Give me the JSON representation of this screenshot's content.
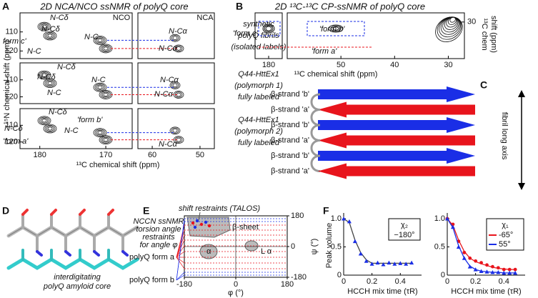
{
  "panel_labels": [
    "A",
    "B",
    "C",
    "D",
    "E",
    "F"
  ],
  "panel_a": {
    "title": "2D NCA/NCO ssNMR of polyQ core",
    "y_label": "¹⁵N chemical shift (ppm)",
    "x_label": "¹³C chemical shift (ppm)",
    "left_xlim": [
      183,
      166
    ],
    "right_xlim": [
      63,
      47
    ],
    "ylim": [
      100,
      124
    ],
    "left_xticks": [
      180,
      170
    ],
    "right_xticks": [
      60,
      50
    ],
    "yticks": [
      110,
      120
    ],
    "region_labels": [
      "NCO",
      "NCA"
    ],
    "rows": [
      {
        "lines": [
          "synthetic",
          "polyQ fibrils",
          "(isolated labels)"
        ]
      },
      {
        "lines": [
          "Q44-HttEx1",
          "(polymorph 1)",
          "fully labeled"
        ]
      },
      {
        "lines": [
          "Q44-HttEx1",
          "(polymorph 2)",
          "fully labeled"
        ]
      }
    ],
    "annotations": [
      {
        "text": "N-Cδ",
        "color": "#1a2ee6"
      },
      {
        "text": "N-Cδ",
        "color": "#e8141c"
      },
      {
        "text": "form c'",
        "color": "#2e7d32"
      },
      {
        "text": "N-C",
        "color": "#1a2ee6"
      },
      {
        "text": "N-C",
        "color": "#e8141c"
      },
      {
        "text": "N-Cα",
        "color": "#1a2ee6"
      },
      {
        "text": "N-Cα",
        "color": "#e8141c"
      },
      {
        "text": "N-Cδ",
        "color": "#1a2ee6"
      },
      {
        "text": "N-Cδ",
        "color": "#e8141c"
      },
      {
        "text": "N-C",
        "color": "#1a2ee6"
      },
      {
        "text": "N-C",
        "color": "#e8141c"
      },
      {
        "text": "N-Cα",
        "color": "#1a2ee6"
      },
      {
        "text": "N-Cα",
        "color": "#e8141c"
      },
      {
        "text": "N-Cδ",
        "color": "#1a2ee6"
      },
      {
        "text": "'form b'",
        "color": "#1a2ee6"
      },
      {
        "text": "N-Cδ",
        "color": "#e8141c"
      },
      {
        "text": "N-C",
        "color": "#1a2ee6"
      },
      {
        "text": "'form a'",
        "color": "#e8141c"
      },
      {
        "text": "N-Cα",
        "color": "#e8141c"
      }
    ]
  },
  "panel_b": {
    "title": "2D ¹³C-¹³C CP-ssNMR of polyQ core",
    "left_xlim": [
      186,
      174
    ],
    "right_xlim": [
      60,
      27
    ],
    "ylim": [
      25,
      50
    ],
    "left_xticks": [
      180
    ],
    "right_xticks": [
      50,
      40,
      30
    ],
    "yticks": [
      30
    ],
    "x_label": "¹³C chemical shift (ppm)",
    "y_label_lines": [
      "¹³C chem",
      "shift (ppm)"
    ],
    "annotations": [
      {
        "text": "'form c'",
        "color": "#333333"
      },
      {
        "text": "'form b'",
        "color": "#1a2ee6"
      },
      {
        "text": "'form a'",
        "color": "#e8141c"
      }
    ]
  },
  "panel_c": {
    "strands": [
      {
        "label": "β-strand 'b'",
        "color": "#1a2ee6"
      },
      {
        "label": "β-strand 'a'",
        "color": "#e8141c"
      },
      {
        "label": "β-strand 'b'",
        "color": "#1a2ee6"
      },
      {
        "label": "β-strand 'a'",
        "color": "#e8141c"
      },
      {
        "label": "β-strand 'b'",
        "color": "#1a2ee6"
      },
      {
        "label": "β-strand 'a'",
        "color": "#e8141c"
      }
    ],
    "axis_label": "fibril long axis"
  },
  "panel_d": {
    "caption_lines": [
      "interdigitating",
      "polyQ amyloid core"
    ]
  },
  "panel_e": {
    "top_label": "shift restraints (TALOS)",
    "left_lines": [
      "NCCN ssNMR",
      "torsion angle",
      "restraints",
      "for angle φ"
    ],
    "form_labels": [
      {
        "text": "polyQ form a",
        "color": "#e8141c"
      },
      {
        "text": "polyQ form b",
        "color": "#1a2ee6"
      }
    ],
    "region_labels": [
      "β-sheet",
      "α",
      "L α"
    ],
    "xlim": [
      -180,
      180
    ],
    "ylim": [
      -180,
      180
    ],
    "xticks": [
      -180,
      0,
      180
    ],
    "yticks": [
      -180,
      0,
      180
    ],
    "x_label": "φ (°)",
    "y_label": "ψ (°)"
  },
  "chart_data": [
    {
      "type": "line",
      "x_label": "HCCH mix time (τR)",
      "y_label": "Peak volume",
      "x": [
        0,
        0.04,
        0.08,
        0.12,
        0.16,
        0.2,
        0.24,
        0.28,
        0.32,
        0.36,
        0.4,
        0.44,
        0.48
      ],
      "xlim": [
        0,
        0.55
      ],
      "ylim": [
        0,
        1.05
      ],
      "xticks": [
        0,
        0.2,
        0.4
      ],
      "yticks": [
        0,
        0.5,
        {
          "value": 1,
          "label": "1.0"
        }
      ],
      "legend_title": "χ₂",
      "legend": "upper right",
      "series": [
        {
          "name": "−180°",
          "color": "#1a2ee6",
          "marker": "triangle",
          "fit_color": "#444444",
          "values": [
            1.0,
            0.95,
            0.6,
            0.38,
            0.25,
            0.2,
            0.22,
            0.19,
            0.22,
            0.2,
            0.21,
            0.2,
            0.22
          ],
          "fit": [
            1.0,
            0.93,
            0.62,
            0.4,
            0.27,
            0.21,
            0.21,
            0.21,
            0.21,
            0.21,
            0.21,
            0.21,
            0.21
          ]
        }
      ]
    },
    {
      "type": "line",
      "x_label": "HCCH mix time (τR)",
      "x": [
        0,
        0.04,
        0.08,
        0.12,
        0.16,
        0.2,
        0.24,
        0.28,
        0.32,
        0.36,
        0.4,
        0.44,
        0.48
      ],
      "xlim": [
        0,
        0.55
      ],
      "ylim": [
        0,
        1.05
      ],
      "xticks": [
        0,
        0.2,
        0.4
      ],
      "yticks": [
        0,
        0.5,
        {
          "value": 1,
          "label": "1.0"
        }
      ],
      "legend_title": "χ₁",
      "legend": "upper right",
      "series": [
        {
          "name": "-65°",
          "color": "#e8141c",
          "marker": "circle",
          "fit_color": "#e8141c",
          "values": [
            1.0,
            0.9,
            0.6,
            0.4,
            0.3,
            0.25,
            0.22,
            0.18,
            0.15,
            0.13,
            0.1,
            0.1,
            0.1
          ],
          "fit": [
            1.0,
            0.88,
            0.62,
            0.42,
            0.3,
            0.24,
            0.2,
            0.17,
            0.14,
            0.12,
            0.11,
            0.1,
            0.1
          ]
        },
        {
          "name": "55°",
          "color": "#1a2ee6",
          "marker": "triangle",
          "fit_color": "#1a2ee6",
          "values": [
            1.0,
            0.85,
            0.5,
            0.3,
            0.15,
            0.1,
            0.07,
            0.06,
            0.05,
            0.05,
            0.04,
            0.04,
            0.04
          ],
          "fit": [
            1.0,
            0.84,
            0.52,
            0.3,
            0.16,
            0.1,
            0.07,
            0.06,
            0.05,
            0.05,
            0.04,
            0.04,
            0.04
          ]
        }
      ]
    }
  ]
}
